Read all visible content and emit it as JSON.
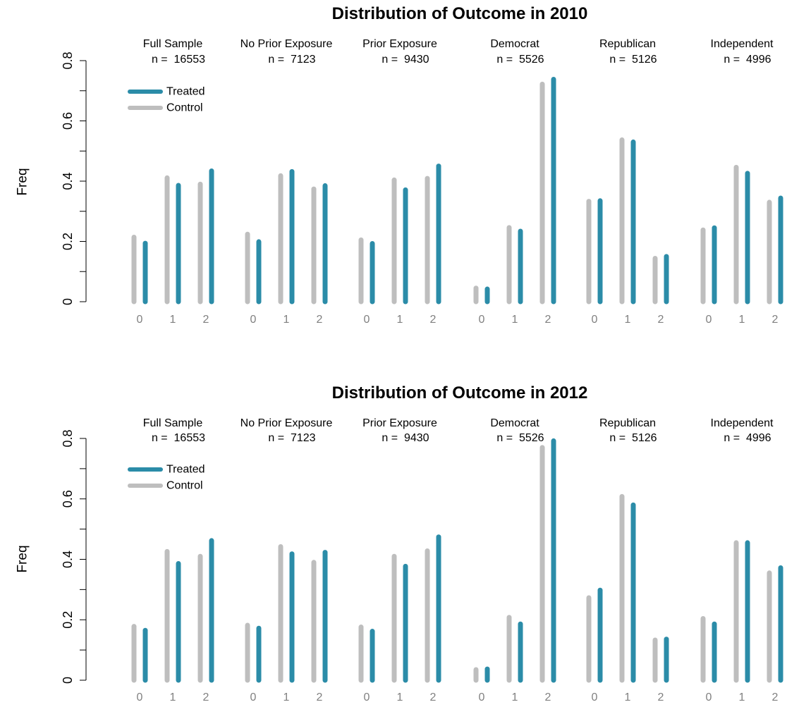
{
  "chart_data": [
    {
      "type": "bar",
      "title": "Distribution of Outcome in 2010",
      "ylabel": "Freq",
      "xlabel": "",
      "ylim": [
        0,
        0.8
      ],
      "yticks": [
        0,
        0.2,
        0.4,
        0.6,
        0.8
      ],
      "ytick_labels": [
        "0",
        "0.2",
        "0.4",
        "0.6",
        "0.8"
      ],
      "categories": [
        "0",
        "1",
        "2"
      ],
      "legend": {
        "placement": "top-left",
        "entries": [
          "Treated",
          "Control"
        ]
      },
      "colors": {
        "Treated": "#2b8ca8",
        "Control": "#bebebe"
      },
      "groups": [
        {
          "name": "Full Sample",
          "n_label": "n =  16553",
          "control": [
            0.214,
            0.411,
            0.39
          ],
          "treated": [
            0.194,
            0.386,
            0.434
          ]
        },
        {
          "name": "No Prior Exposure",
          "n_label": "n =  7123",
          "control": [
            0.224,
            0.418,
            0.374
          ],
          "treated": [
            0.199,
            0.432,
            0.385
          ]
        },
        {
          "name": "Prior Exposure",
          "n_label": "n =  9430",
          "control": [
            0.205,
            0.404,
            0.409
          ],
          "treated": [
            0.193,
            0.371,
            0.45
          ]
        },
        {
          "name": "Democrat",
          "n_label": "n =  5526",
          "control": [
            0.045,
            0.246,
            0.722
          ],
          "treated": [
            0.042,
            0.234,
            0.738
          ]
        },
        {
          "name": "Republican",
          "n_label": "n =  5126",
          "control": [
            0.333,
            0.537,
            0.144
          ],
          "treated": [
            0.335,
            0.53,
            0.15
          ]
        },
        {
          "name": "Independent",
          "n_label": "n =  4996",
          "control": [
            0.238,
            0.446,
            0.33
          ],
          "treated": [
            0.245,
            0.426,
            0.344
          ]
        }
      ]
    },
    {
      "type": "bar",
      "title": "Distribution of Outcome in 2012",
      "ylabel": "Freq",
      "xlabel": "",
      "ylim": [
        0,
        0.8
      ],
      "yticks": [
        0,
        0.2,
        0.4,
        0.6,
        0.8
      ],
      "ytick_labels": [
        "0",
        "0.2",
        "0.4",
        "0.6",
        "0.8"
      ],
      "categories": [
        "0",
        "1",
        "2"
      ],
      "legend": {
        "placement": "top-left",
        "entries": [
          "Treated",
          "Control"
        ]
      },
      "colors": {
        "Treated": "#2b8ca8",
        "Control": "#bebebe"
      },
      "groups": [
        {
          "name": "Full Sample",
          "n_label": "n =  16553",
          "control": [
            0.178,
            0.426,
            0.41
          ],
          "treated": [
            0.165,
            0.386,
            0.462
          ]
        },
        {
          "name": "No Prior Exposure",
          "n_label": "n =  7123",
          "control": [
            0.182,
            0.442,
            0.39
          ],
          "treated": [
            0.172,
            0.418,
            0.423
          ]
        },
        {
          "name": "Prior Exposure",
          "n_label": "n =  9430",
          "control": [
            0.176,
            0.41,
            0.428
          ],
          "treated": [
            0.162,
            0.377,
            0.474
          ]
        },
        {
          "name": "Democrat",
          "n_label": "n =  5526",
          "control": [
            0.035,
            0.208,
            0.77
          ],
          "treated": [
            0.037,
            0.186,
            0.792
          ]
        },
        {
          "name": "Republican",
          "n_label": "n =  5126",
          "control": [
            0.273,
            0.608,
            0.133
          ],
          "treated": [
            0.298,
            0.58,
            0.136
          ]
        },
        {
          "name": "Independent",
          "n_label": "n =  4996",
          "control": [
            0.204,
            0.455,
            0.355
          ],
          "treated": [
            0.186,
            0.455,
            0.372
          ]
        }
      ]
    }
  ]
}
